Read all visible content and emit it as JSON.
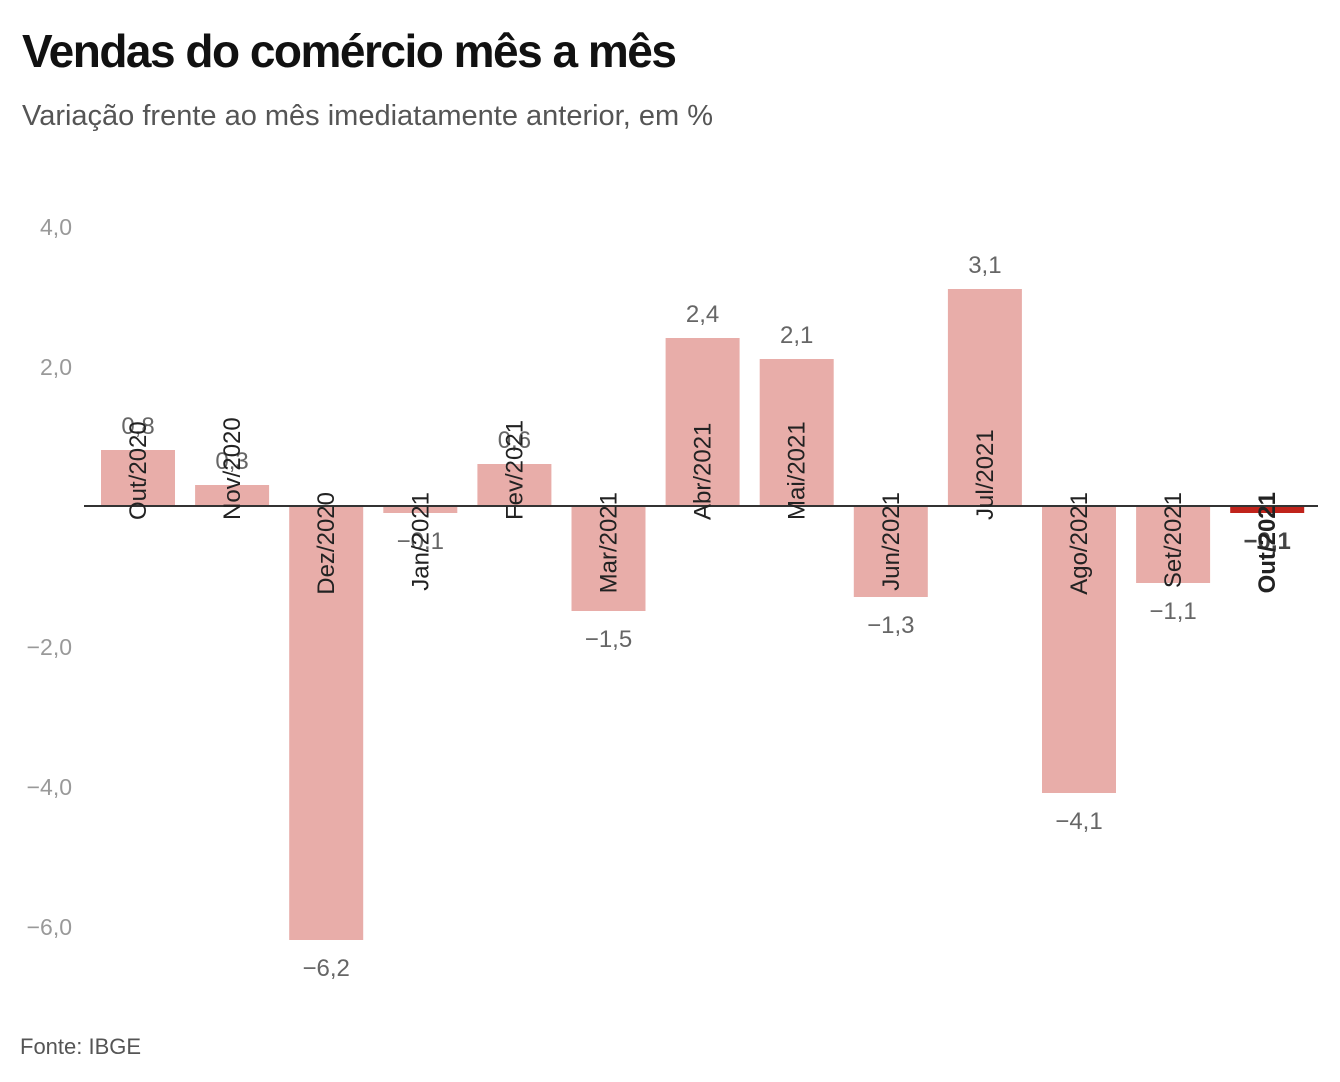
{
  "header": {
    "title": "Vendas do comércio mês a mês",
    "subtitle": "Variação frente ao mês imediatamente anterior, em %"
  },
  "footer": {
    "source": "Fonte: IBGE"
  },
  "colors": {
    "bar": "#e8ada9",
    "highlight": "#c0231b",
    "baseline": "#333333"
  },
  "chart_data": {
    "type": "bar",
    "categories": [
      "Out/2020",
      "Nov/2020",
      "Dez/2020",
      "Jan/2021",
      "Fev/2021",
      "Mar/2021",
      "Abr/2021",
      "Mai/2021",
      "Jun/2021",
      "Jul/2021",
      "Ago/2021",
      "Set/2021",
      "Out/2021"
    ],
    "values": [
      0.8,
      0.3,
      -6.2,
      -0.1,
      0.6,
      -1.5,
      2.4,
      2.1,
      -1.3,
      3.1,
      -4.1,
      -1.1,
      -0.1
    ],
    "value_labels": [
      "0,8",
      "0,3",
      "−6,2",
      "−0,1",
      "0,6",
      "−1,5",
      "2,4",
      "2,1",
      "−1,3",
      "3,1",
      "−4,1",
      "−1,1",
      "−0,1"
    ],
    "highlight_index": 12,
    "yticks": [
      4,
      2,
      0,
      -2,
      -4,
      -6
    ],
    "ytick_labels": [
      "4,0",
      "2,0",
      "",
      "−2,0",
      "−4,0",
      "−6,0"
    ],
    "ylim": [
      -6.7,
      4.2
    ],
    "grid": false,
    "legend": "none"
  }
}
